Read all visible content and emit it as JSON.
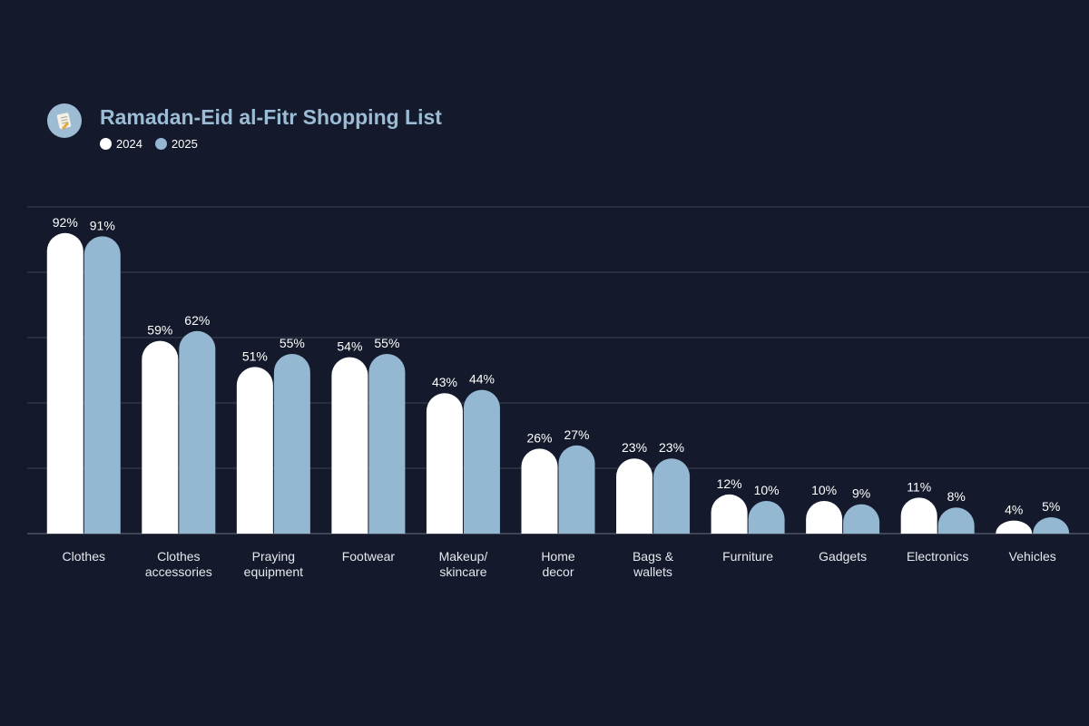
{
  "colors": {
    "background": "#141a2b",
    "title": "#9cbcd6",
    "series_2024": "#ffffff",
    "series_2025": "#94b7d2",
    "grid": "#3b4152"
  },
  "header": {
    "logo_icon": "shopping-list-icon"
  },
  "chart_data": {
    "type": "bar",
    "title": "Ramadan-Eid al-Fitr Shopping List",
    "xlabel": "",
    "ylabel": "",
    "ylim": [
      0,
      100
    ],
    "grid": true,
    "legend_position": "top-left",
    "categories": [
      [
        "Clothes"
      ],
      [
        "Clothes",
        "accessories"
      ],
      [
        "Praying",
        "equipment"
      ],
      [
        "Footwear"
      ],
      [
        "Makeup/",
        "skincare"
      ],
      [
        "Home",
        "decor"
      ],
      [
        "Bags &",
        "wallets"
      ],
      [
        "Furniture"
      ],
      [
        "Gadgets"
      ],
      [
        "Electronics"
      ],
      [
        "Vehicles"
      ]
    ],
    "series": [
      {
        "name": "2024",
        "values": [
          92,
          59,
          51,
          54,
          43,
          26,
          23,
          12,
          10,
          11,
          4
        ],
        "labels": [
          "92%",
          "59%",
          "51%",
          "54%",
          "43%",
          "26%",
          "23%",
          "12%",
          "10%",
          "11%",
          "4%"
        ]
      },
      {
        "name": "2025",
        "values": [
          91,
          62,
          55,
          55,
          44,
          27,
          23,
          10,
          9,
          8,
          5
        ],
        "labels": [
          "91%",
          "62%",
          "55%",
          "55%",
          "44%",
          "27%",
          "23%",
          "10%",
          "9%",
          "8%",
          "5%"
        ]
      }
    ]
  }
}
